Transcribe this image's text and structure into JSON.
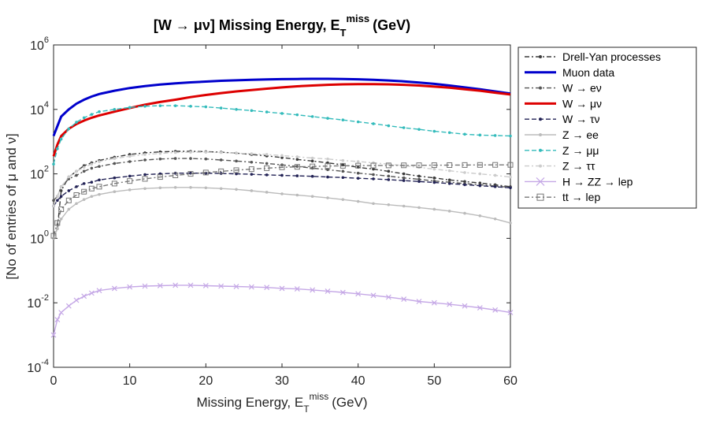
{
  "chart_data": {
    "type": "line",
    "title": "[W → μν] Missing Energy, E",
    "title_sub": "T",
    "title_sup": "miss",
    "title_unit": "(GeV)",
    "xlabel": "Missing Energy, E",
    "xlabel_sub": "T",
    "xlabel_sup": "miss",
    "xlabel_unit": "(GeV)",
    "ylabel": "[No of entries of μ and ν]",
    "xlim": [
      0,
      60
    ],
    "ylim": [
      0.0001,
      1000000
    ],
    "yscale": "log",
    "xticks": [
      "0",
      "10",
      "20",
      "30",
      "40",
      "50",
      "60"
    ],
    "yticks": [
      {
        "base": "10",
        "exp": "-4"
      },
      {
        "base": "10",
        "exp": "-2"
      },
      {
        "base": "10",
        "exp": "0"
      },
      {
        "base": "10",
        "exp": "2"
      },
      {
        "base": "10",
        "exp": "4"
      },
      {
        "base": "10",
        "exp": "6"
      }
    ],
    "grid": false,
    "legend_position": "outside-right",
    "x": [
      0,
      0.5,
      1,
      2,
      3,
      4,
      5,
      6,
      8,
      10,
      12,
      14,
      16,
      18,
      20,
      22,
      24,
      26,
      28,
      30,
      32,
      34,
      36,
      38,
      40,
      42,
      44,
      46,
      48,
      50,
      52,
      54,
      56,
      58,
      60
    ],
    "series": [
      {
        "name": "Drell-Yan processes",
        "color": "#3a3a3a",
        "dash": "6,3,2,3",
        "marker": "dot",
        "values": [
          1,
          2,
          30,
          80,
          120,
          180,
          220,
          260,
          330,
          400,
          450,
          480,
          500,
          500,
          490,
          470,
          440,
          400,
          360,
          320,
          280,
          250,
          220,
          190,
          160,
          140,
          120,
          100,
          85,
          75,
          65,
          58,
          52,
          46,
          40
        ]
      },
      {
        "name": "Muon data",
        "color": "#0000cc",
        "dash": "",
        "marker": "none",
        "width": 3,
        "values": [
          1500,
          3000,
          6000,
          10000,
          15000,
          20000,
          25000,
          30000,
          38000,
          46000,
          53000,
          59000,
          64000,
          69000,
          73000,
          77000,
          80000,
          83000,
          85000,
          87000,
          88000,
          89000,
          89000,
          88000,
          86000,
          83000,
          79000,
          74000,
          68000,
          62000,
          55000,
          48000,
          42000,
          36000,
          31000
        ]
      },
      {
        "name": "W → eν",
        "color": "#555555",
        "dash": "6,3,2,3",
        "marker": "dot",
        "values": [
          15,
          20,
          40,
          70,
          90,
          120,
          150,
          170,
          210,
          240,
          270,
          290,
          300,
          300,
          290,
          270,
          250,
          230,
          210,
          190,
          170,
          150,
          135,
          120,
          105,
          95,
          85,
          75,
          68,
          60,
          55,
          50,
          46,
          42,
          38
        ]
      },
      {
        "name": "W → μν",
        "color": "#dd0000",
        "dash": "",
        "marker": "none",
        "width": 3,
        "values": [
          350,
          800,
          1500,
          2500,
          3500,
          4500,
          5500,
          6500,
          8500,
          11000,
          14000,
          17000,
          20000,
          24000,
          28000,
          32000,
          36000,
          40000,
          44000,
          48000,
          52000,
          55000,
          58000,
          60000,
          61000,
          61000,
          60000,
          58000,
          55000,
          51000,
          47000,
          42000,
          38000,
          33000,
          29000
        ]
      },
      {
        "name": "W → τν",
        "color": "#222255",
        "dash": "6,3",
        "marker": "dot",
        "values": [
          10,
          15,
          20,
          30,
          40,
          50,
          55,
          65,
          75,
          85,
          95,
          100,
          105,
          105,
          105,
          103,
          100,
          97,
          93,
          90,
          87,
          84,
          80,
          77,
          73,
          70,
          66,
          62,
          58,
          54,
          50,
          46,
          43,
          40,
          37
        ]
      },
      {
        "name": "Z → ee",
        "color": "#bbbbbb",
        "dash": "",
        "marker": "dot",
        "values": [
          1,
          2,
          4,
          8,
          12,
          16,
          20,
          23,
          28,
          32,
          35,
          37,
          38,
          38,
          37,
          35,
          33,
          30,
          27,
          24,
          22,
          20,
          18,
          16,
          14,
          12,
          11,
          10,
          9,
          8,
          7,
          6,
          5,
          4,
          3
        ]
      },
      {
        "name": "Z → μμ",
        "color": "#33bbbb",
        "dash": "6,3",
        "marker": "dot",
        "values": [
          200,
          600,
          1200,
          2500,
          4000,
          5500,
          7000,
          8500,
          10000,
          11500,
          12500,
          13000,
          13000,
          12500,
          12000,
          11000,
          10000,
          9200,
          8300,
          7500,
          6800,
          6000,
          5300,
          4700,
          4100,
          3600,
          3100,
          2700,
          2400,
          2100,
          1900,
          1700,
          1600,
          1550,
          1500
        ]
      },
      {
        "name": "Z → ττ",
        "color": "#cccccc",
        "dash": "6,3,2,3",
        "marker": "dot",
        "values": [
          10,
          20,
          40,
          80,
          120,
          160,
          200,
          240,
          300,
          350,
          400,
          430,
          460,
          470,
          470,
          460,
          440,
          420,
          400,
          370,
          340,
          310,
          290,
          260,
          240,
          220,
          200,
          180,
          160,
          140,
          125,
          110,
          100,
          90,
          80
        ]
      },
      {
        "name": "H → ZZ → lep",
        "color": "#c5a8e6",
        "dash": "",
        "marker": "x",
        "values": [
          0.001,
          0.003,
          0.005,
          0.008,
          0.012,
          0.016,
          0.02,
          0.024,
          0.028,
          0.031,
          0.033,
          0.034,
          0.035,
          0.035,
          0.034,
          0.033,
          0.032,
          0.031,
          0.03,
          0.028,
          0.027,
          0.025,
          0.023,
          0.021,
          0.019,
          0.017,
          0.015,
          0.013,
          0.011,
          0.01,
          0.009,
          0.008,
          0.007,
          0.006,
          0.005
        ]
      },
      {
        "name": "tt → lep",
        "color": "#777777",
        "dash": "6,3,2,3",
        "marker": "square",
        "values": [
          1.2,
          3,
          8,
          15,
          22,
          28,
          35,
          40,
          50,
          60,
          70,
          80,
          90,
          100,
          110,
          120,
          130,
          140,
          150,
          160,
          165,
          170,
          175,
          178,
          180,
          182,
          183,
          184,
          185,
          186,
          187,
          188,
          189,
          190,
          190
        ]
      }
    ]
  }
}
